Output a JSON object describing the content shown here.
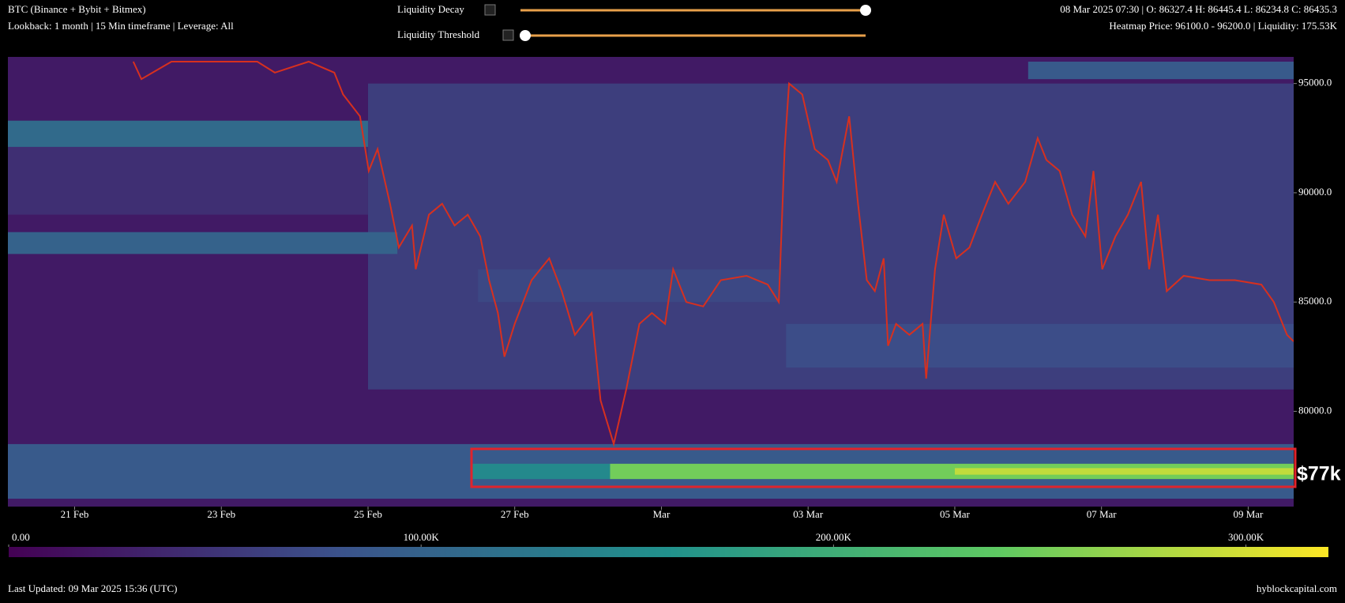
{
  "header": {
    "title": "BTC (Binance + Bybit + Bitmex)",
    "settings": "Lookback: 1 month | 15 Min timeframe | Leverage: All",
    "ohlc": "08 Mar 2025 07:30 | O: 86327.4 H: 86445.4 L: 86234.8 C: 86435.3",
    "hover": "Heatmap Price: 96100.0 - 96200.0 | Liquidity: 175.53K"
  },
  "controls": {
    "decay_label": "Liquidity Decay",
    "threshold_label": "Liquidity Threshold"
  },
  "chart_data": {
    "type": "heatmap",
    "annotation": "$77k",
    "xlim": [
      20.09,
      37.62
    ],
    "xticks": [
      {
        "value": 21,
        "label": "21 Feb"
      },
      {
        "value": 23,
        "label": "23 Feb"
      },
      {
        "value": 25,
        "label": "25 Feb"
      },
      {
        "value": 27,
        "label": "27 Feb"
      },
      {
        "value": 29,
        "label": "Mar"
      },
      {
        "value": 31,
        "label": "03 Mar"
      },
      {
        "value": 33,
        "label": "05 Mar"
      },
      {
        "value": 35,
        "label": "07 Mar"
      },
      {
        "value": 37,
        "label": "09 Mar"
      }
    ],
    "ylim": [
      75640,
      96218
    ],
    "yticks": [
      {
        "value": 80000,
        "label": "80000.0"
      },
      {
        "value": 85000,
        "label": "85000.0"
      },
      {
        "value": 90000,
        "label": "90000.0"
      },
      {
        "value": 95000,
        "label": "95000.0"
      }
    ],
    "zlim": [
      0,
      320000
    ],
    "zticks": [
      {
        "value": 0,
        "label": "0.00"
      },
      {
        "value": 100000,
        "label": "100.00K"
      },
      {
        "value": 200000,
        "label": "200.00K"
      },
      {
        "value": 300000,
        "label": "300.00K"
      }
    ],
    "colors": [
      "#440154",
      "#3b528b",
      "#21918c",
      "#5ec962",
      "#fde725"
    ],
    "line_color": "#d7301f",
    "heatmap": {
      "y0": [
        75640,
        81000,
        89000,
        92100,
        87200,
        95200,
        85000,
        82000,
        76000,
        76900,
        76900,
        77100
      ],
      "y1": [
        96218,
        95000,
        93000,
        93300,
        88200,
        96000,
        86500,
        84000,
        78500,
        77600,
        77600,
        77400
      ],
      "x0": [
        20.09,
        25.0,
        20.09,
        20.09,
        20.09,
        34.0,
        26.5,
        30.7,
        20.09,
        26.42,
        28.3,
        33.0
      ],
      "x1": [
        37.62,
        37.62,
        25.0,
        25.0,
        25.4,
        37.62,
        30.6,
        37.62,
        37.62,
        28.3,
        37.62,
        37.62
      ],
      "values": [
        25000,
        60000,
        45000,
        110000,
        100000,
        90000,
        70000,
        75000,
        90000,
        150000,
        250000,
        290000
      ]
    },
    "x": [
      21.8,
      21.91,
      22.32,
      23.49,
      23.73,
      24.19,
      24.54,
      24.66,
      24.89,
      25.01,
      25.13,
      25.3,
      25.42,
      25.6,
      25.65,
      25.83,
      26.01,
      26.18,
      26.36,
      26.53,
      26.65,
      26.77,
      26.86,
      27.0,
      27.23,
      27.47,
      27.64,
      27.82,
      28.05,
      28.17,
      28.35,
      28.52,
      28.7,
      28.87,
      29.05,
      29.16,
      29.34,
      29.57,
      29.81,
      30.16,
      30.45,
      30.6,
      30.68,
      30.74,
      30.92,
      31.09,
      31.27,
      31.39,
      31.56,
      31.68,
      31.8,
      31.91,
      32.03,
      32.09,
      32.2,
      32.38,
      32.56,
      32.61,
      32.73,
      32.85,
      33.02,
      33.2,
      33.37,
      33.55,
      33.73,
      33.96,
      34.13,
      34.25,
      34.43,
      34.6,
      34.78,
      34.89,
      35.01,
      35.19,
      35.36,
      35.54,
      35.65,
      35.77,
      35.89,
      36.12,
      36.47,
      36.82,
      37.18,
      37.35,
      37.53,
      37.62
    ],
    "values": [
      96000,
      95200,
      96000,
      96000,
      95500,
      96000,
      95500,
      94500,
      93500,
      91000,
      92000,
      89500,
      87500,
      88500,
      86500,
      89000,
      89500,
      88500,
      89000,
      88000,
      86000,
      84500,
      82500,
      84000,
      86000,
      87000,
      85500,
      83500,
      84500,
      80500,
      78500,
      81000,
      84000,
      84500,
      84000,
      86500,
      85000,
      84800,
      86000,
      86200,
      85800,
      85000,
      92000,
      95000,
      94500,
      92000,
      91500,
      90500,
      93500,
      89500,
      86000,
      85500,
      87000,
      83000,
      84000,
      83500,
      84000,
      81500,
      86500,
      89000,
      87000,
      87500,
      89000,
      90500,
      89500,
      90500,
      92500,
      91500,
      91000,
      89000,
      88000,
      91000,
      86500,
      88000,
      89000,
      90500,
      86500,
      89000,
      85500,
      86200,
      86000,
      86000,
      85800,
      85000,
      83500,
      83200
    ]
  },
  "footer": {
    "updated": "Last Updated: 09 Mar 2025 15:36 (UTC)",
    "site": "hyblockcapital.com"
  }
}
